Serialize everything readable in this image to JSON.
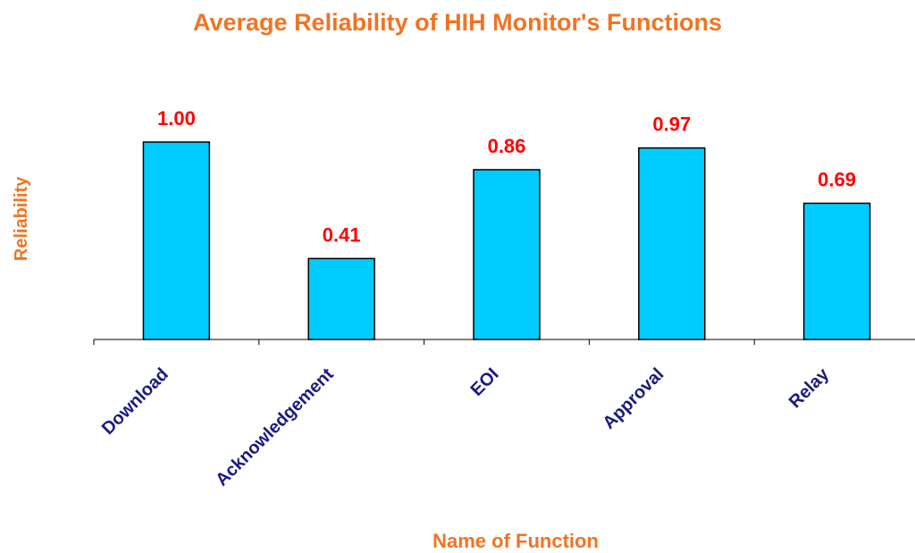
{
  "chart_data": {
    "type": "bar",
    "title": "Average Reliability of HIH Monitor's Functions",
    "x_label": "Name of Function",
    "y_label": "Reliability",
    "categories": [
      "Download",
      "Acknowledgement",
      "EOI",
      "Approval",
      "Relay"
    ],
    "values": [
      1.0,
      0.41,
      0.86,
      0.97,
      0.69
    ],
    "value_labels": [
      "1.00",
      "0.41",
      "0.86",
      "0.97",
      "0.69"
    ],
    "color": "#00ccff",
    "ylim": [
      0,
      1
    ]
  }
}
